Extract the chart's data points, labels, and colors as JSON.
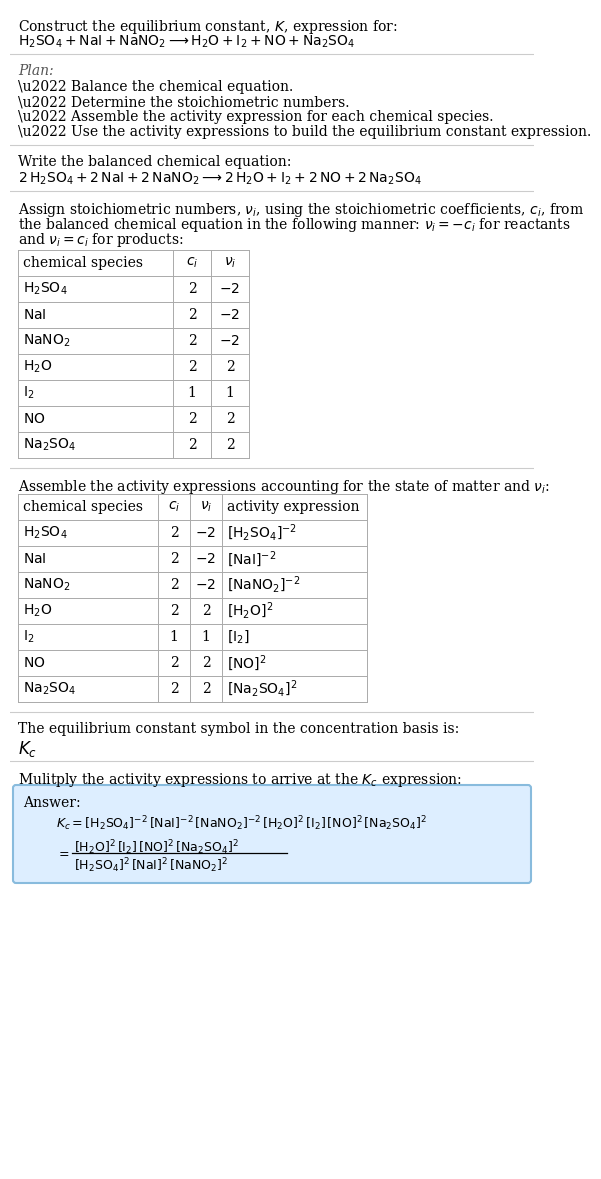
{
  "bg_color": "#ffffff",
  "text_color": "#000000",
  "gray_color": "#777777",
  "title_line1": "Construct the equilibrium constant, $K$, expression for:",
  "title_chem": "$\\mathrm{H_2SO_4 + NaI + NaNO_2 \\longrightarrow H_2O + I_2 + NO + Na_2SO_4}$",
  "plan_title": "Plan:",
  "plan_items": [
    "\\u2022 Balance the chemical equation.",
    "\\u2022 Determine the stoichiometric numbers.",
    "\\u2022 Assemble the activity expression for each chemical species.",
    "\\u2022 Use the activity expressions to build the equilibrium constant expression."
  ],
  "balanced_label": "Write the balanced chemical equation:",
  "balanced_eq": "$\\mathrm{2\\,H_2SO_4 + 2\\,NaI + 2\\,NaNO_2 \\longrightarrow 2\\,H_2O + I_2 + 2\\,NO + 2\\,Na_2SO_4}$",
  "stoich_lines": [
    "Assign stoichiometric numbers, $\\nu_i$, using the stoichiometric coefficients, $c_i$, from",
    "the balanced chemical equation in the following manner: $\\nu_i = -c_i$ for reactants",
    "and $\\nu_i = c_i$ for products:"
  ],
  "table1_header": [
    "chemical species",
    "$c_i$",
    "$\\nu_i$"
  ],
  "table1_rows": [
    [
      "$\\mathrm{H_2SO_4}$",
      "2",
      "$-2$"
    ],
    [
      "$\\mathrm{NaI}$",
      "2",
      "$-2$"
    ],
    [
      "$\\mathrm{NaNO_2}$",
      "2",
      "$-2$"
    ],
    [
      "$\\mathrm{H_2O}$",
      "2",
      "2"
    ],
    [
      "$\\mathrm{I_2}$",
      "1",
      "1"
    ],
    [
      "$\\mathrm{NO}$",
      "2",
      "2"
    ],
    [
      "$\\mathrm{Na_2SO_4}$",
      "2",
      "2"
    ]
  ],
  "assemble_line": "Assemble the activity expressions accounting for the state of matter and $\\nu_i$:",
  "table2_header": [
    "chemical species",
    "$c_i$",
    "$\\nu_i$",
    "activity expression"
  ],
  "table2_rows": [
    [
      "$\\mathrm{H_2SO_4}$",
      "2",
      "$-2$",
      "$[\\mathrm{H_2SO_4}]^{-2}$"
    ],
    [
      "$\\mathrm{NaI}$",
      "2",
      "$-2$",
      "$[\\mathrm{NaI}]^{-2}$"
    ],
    [
      "$\\mathrm{NaNO_2}$",
      "2",
      "$-2$",
      "$[\\mathrm{NaNO_2}]^{-2}$"
    ],
    [
      "$\\mathrm{H_2O}$",
      "2",
      "2",
      "$[\\mathrm{H_2O}]^{2}$"
    ],
    [
      "$\\mathrm{I_2}$",
      "1",
      "1",
      "$[\\mathrm{I_2}]$"
    ],
    [
      "$\\mathrm{NO}$",
      "2",
      "2",
      "$[\\mathrm{NO}]^{2}$"
    ],
    [
      "$\\mathrm{Na_2SO_4}$",
      "2",
      "2",
      "$[\\mathrm{Na_2SO_4}]^{2}$"
    ]
  ],
  "kc_label": "The equilibrium constant symbol in the concentration basis is:",
  "kc_symbol": "$K_c$",
  "multiply_line": "Mulitply the activity expressions to arrive at the $K_c$ expression:",
  "answer_label": "Answer:",
  "answer_kc_line": "$K_c = [\\mathrm{H_2SO_4}]^{-2}\\,[\\mathrm{NaI}]^{-2}\\,[\\mathrm{NaNO_2}]^{-2}\\,[\\mathrm{H_2O}]^{2}\\,[\\mathrm{I_2}]\\,[\\mathrm{NO}]^{2}\\,[\\mathrm{Na_2SO_4}]^{2}$",
  "answer_num": "$[\\mathrm{H_2O}]^{2}\\,[\\mathrm{I_2}]\\,[\\mathrm{NO}]^{2}\\,[\\mathrm{Na_2SO_4}]^{2}$",
  "answer_den": "$[\\mathrm{H_2SO_4}]^{2}\\,[\\mathrm{NaI}]^{2}\\,[\\mathrm{NaNO_2}]^{2}$",
  "box_fill": "#ddeeff",
  "box_edge": "#88bbdd",
  "line_color": "#cccccc"
}
